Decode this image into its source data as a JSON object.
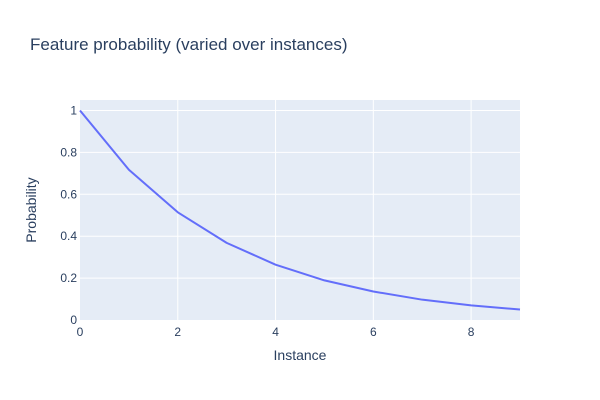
{
  "chart_data": {
    "type": "line",
    "title": "Feature probability (varied over instances)",
    "xlabel": "Instance",
    "ylabel": "Probability",
    "x": [
      0,
      1,
      2,
      3,
      4,
      5,
      6,
      7,
      8,
      9
    ],
    "series": [
      {
        "values": [
          1.0,
          0.717,
          0.514,
          0.368,
          0.264,
          0.189,
          0.136,
          0.097,
          0.07,
          0.05
        ],
        "color": "#636efa"
      }
    ],
    "xlim": [
      0,
      9
    ],
    "ylim": [
      0,
      1.05
    ],
    "xticks": [
      0,
      2,
      4,
      6,
      8
    ],
    "xtick_labels": [
      "0",
      "2",
      "4",
      "6",
      "8"
    ],
    "yticks": [
      0,
      0.2,
      0.4,
      0.6,
      0.8,
      1
    ],
    "ytick_labels": [
      "0",
      "0.2",
      "0.4",
      "0.6",
      "0.8",
      "1"
    ],
    "grid": true,
    "plot_background": "#e5ecf6",
    "grid_color": "#ffffff",
    "text_color": "#2a3f5f"
  }
}
